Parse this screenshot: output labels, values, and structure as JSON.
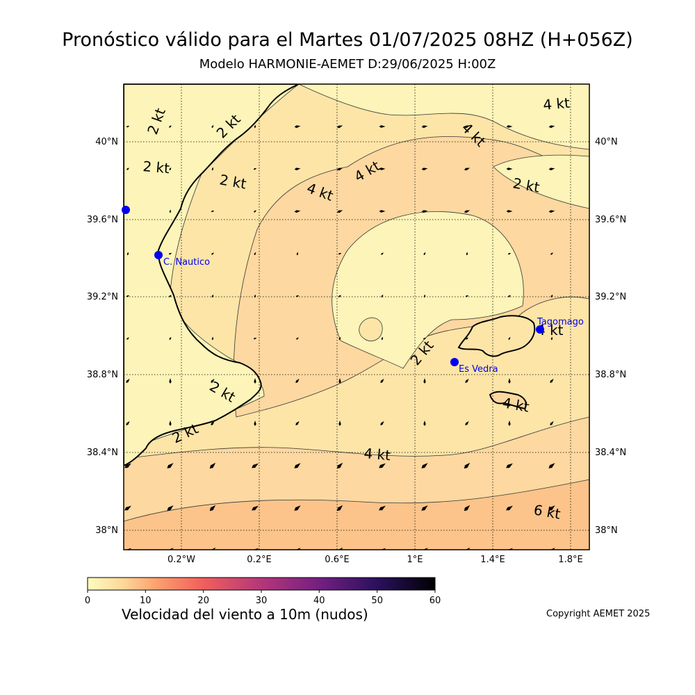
{
  "header": {
    "title": "Pronóstico válido para el Martes 01/07/2025 08HZ (H+056Z)",
    "subtitle": "Modelo HARMONIE-AEMET D:29/06/2025 H:00Z"
  },
  "map": {
    "lat_labels": [
      "40°N",
      "39.6°N",
      "39.2°N",
      "38.8°N",
      "38.4°N",
      "38°N"
    ],
    "lon_labels": [
      "0.2°W",
      "0.2°E",
      "0.6°E",
      "1°E",
      "1.4°E",
      "1.8°E"
    ],
    "contour_labels": [
      "2 kt",
      "2 kt",
      "2 kt",
      "2 kt",
      "2 kt",
      "2 kt",
      "2 kt",
      "2 kt",
      "4 kt",
      "4 kt",
      "4 kt",
      "4 kt",
      "4 kt",
      "4 kt",
      "4 kt",
      "6 kt"
    ],
    "stations": [
      "C. Nautico",
      "Es Vedra",
      "Tagomago"
    ],
    "colors": {
      "band_0_2": "#fcf4b8",
      "band_2_4": "#fde5a8",
      "band_4_6": "#fdd8a0",
      "band_6_8": "#fcc48a",
      "station": "#0000ee",
      "coast": "#000000"
    }
  },
  "colorbar": {
    "ticks": [
      "0",
      "10",
      "20",
      "30",
      "40",
      "50",
      "60"
    ],
    "label": "Velocidad del viento a 10m (nudos)",
    "colormap": "magma_r"
  },
  "footer": {
    "copyright": "Copyright AEMET 2025"
  }
}
